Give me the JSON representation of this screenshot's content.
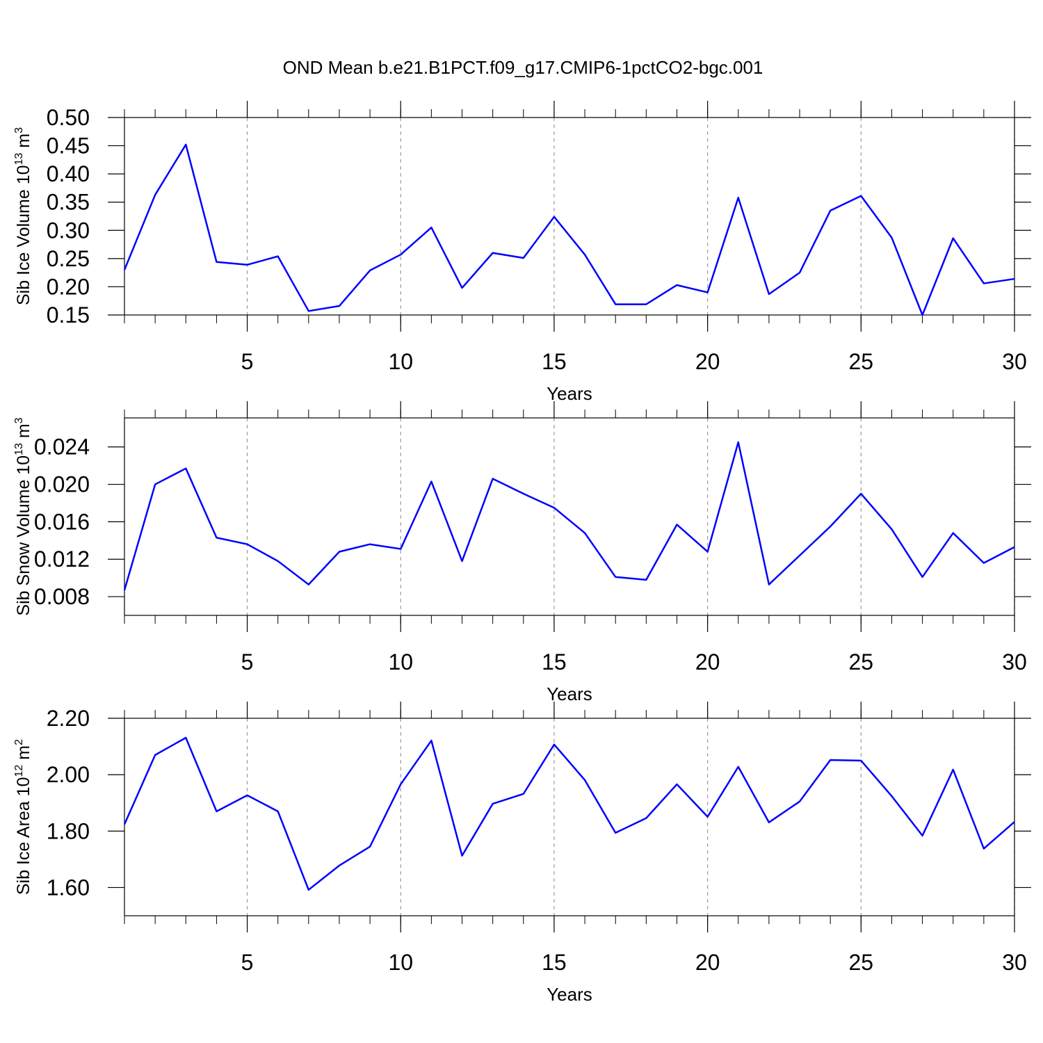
{
  "title": "OND Mean b.e21.B1PCT.f09_g17.CMIP6-1pctCO2-bgc.001",
  "chart_data": [
    {
      "type": "line",
      "xlabel": "Years",
      "ylabel": [
        "Sib Ice Volume 10",
        "13",
        " m",
        "3"
      ],
      "x": [
        1,
        2,
        3,
        4,
        5,
        6,
        7,
        8,
        9,
        10,
        11,
        12,
        13,
        14,
        15,
        16,
        17,
        18,
        19,
        20,
        21,
        22,
        23,
        24,
        25,
        26,
        27,
        28,
        29,
        30
      ],
      "series": [
        {
          "color": "#0000ff",
          "values": [
            0.23,
            0.363,
            0.452,
            0.244,
            0.239,
            0.254,
            0.157,
            0.166,
            0.229,
            0.257,
            0.305,
            0.198,
            0.26,
            0.251,
            0.324,
            0.257,
            0.169,
            0.169,
            0.203,
            0.19,
            0.358,
            0.187,
            0.225,
            0.335,
            0.361,
            0.287,
            0.15,
            0.286,
            0.206,
            0.214
          ]
        }
      ],
      "xlim": [
        1,
        30
      ],
      "xticks": [
        5,
        10,
        15,
        20,
        25,
        30
      ],
      "ylim": [
        0.15,
        0.5
      ],
      "yticks": [
        {
          "value": 0.15,
          "label": "0.15"
        },
        {
          "value": 0.2,
          "label": "0.20"
        },
        {
          "value": 0.25,
          "label": "0.25"
        },
        {
          "value": 0.3,
          "label": "0.30"
        },
        {
          "value": 0.35,
          "label": "0.35"
        },
        {
          "value": 0.4,
          "label": "0.40"
        },
        {
          "value": 0.45,
          "label": "0.45"
        },
        {
          "value": 0.5,
          "label": "0.50"
        }
      ],
      "grid": "x"
    },
    {
      "type": "line",
      "xlabel": "Years",
      "ylabel": [
        "Sib Snow Volume 10",
        "13",
        " m",
        "3"
      ],
      "x": [
        1,
        2,
        3,
        4,
        5,
        6,
        7,
        8,
        9,
        10,
        11,
        12,
        13,
        14,
        15,
        16,
        17,
        18,
        19,
        20,
        21,
        22,
        23,
        24,
        25,
        26,
        27,
        28,
        29,
        30
      ],
      "series": [
        {
          "color": "#0000ff",
          "values": [
            0.0087,
            0.02,
            0.0217,
            0.0143,
            0.0136,
            0.0118,
            0.0093,
            0.0128,
            0.0136,
            0.0131,
            0.0203,
            0.0118,
            0.0206,
            0.019,
            0.0175,
            0.0148,
            0.0101,
            0.0098,
            0.0157,
            0.0128,
            0.0245,
            0.0093,
            0.0124,
            0.0155,
            0.019,
            0.0152,
            0.0101,
            0.0148,
            0.0116,
            0.0133
          ]
        }
      ],
      "xlim": [
        1,
        30
      ],
      "xticks": [
        5,
        10,
        15,
        20,
        25,
        30
      ],
      "ylim": [
        0.006,
        0.0271
      ],
      "yticks": [
        0.008,
        0.012,
        0.016,
        {
          "value": 0.02,
          "label": "0.020"
        },
        0.024
      ],
      "grid": "x"
    },
    {
      "type": "line",
      "xlabel": "Years",
      "ylabel": [
        "Sib Ice Area 10",
        "12",
        " m",
        "2"
      ],
      "x": [
        1,
        2,
        3,
        4,
        5,
        6,
        7,
        8,
        9,
        10,
        11,
        12,
        13,
        14,
        15,
        16,
        17,
        18,
        19,
        20,
        21,
        22,
        23,
        24,
        25,
        26,
        27,
        28,
        29,
        30
      ],
      "series": [
        {
          "color": "#0000ff",
          "values": [
            1.824,
            2.07,
            2.131,
            1.87,
            1.927,
            1.87,
            1.592,
            1.678,
            1.745,
            1.966,
            2.121,
            1.713,
            1.897,
            1.932,
            2.107,
            1.981,
            1.794,
            1.846,
            1.966,
            1.851,
            2.028,
            1.831,
            1.905,
            2.052,
            2.05,
            1.924,
            1.784,
            2.018,
            1.738,
            1.833
          ]
        }
      ],
      "xlim": [
        1,
        30
      ],
      "xticks": [
        5,
        10,
        15,
        20,
        25,
        30
      ],
      "ylim": [
        1.5,
        2.2
      ],
      "yticks": [
        {
          "value": 1.6,
          "label": "1.60"
        },
        {
          "value": 1.8,
          "label": "1.80"
        },
        {
          "value": 2.0,
          "label": "2.00"
        },
        {
          "value": 2.2,
          "label": "2.20"
        }
      ],
      "grid": "x"
    }
  ]
}
